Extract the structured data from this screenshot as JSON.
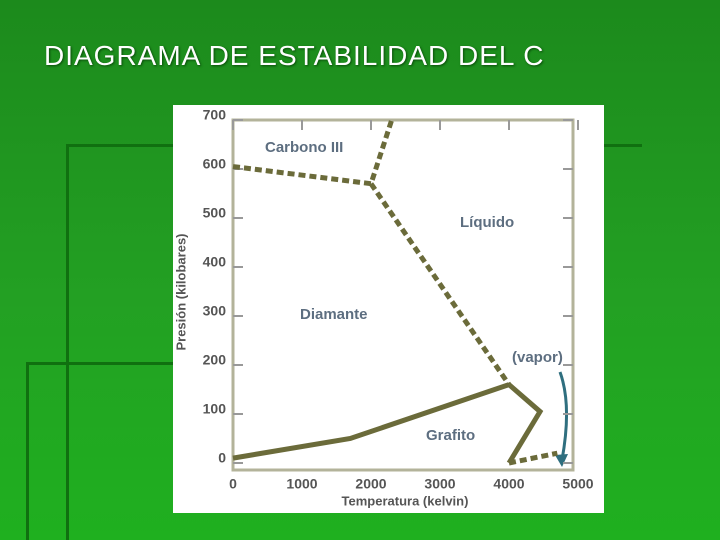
{
  "chart_data": {
    "type": "line",
    "title": "DIAGRAMA DE ESTABILIDAD DEL C",
    "x_label": "Temperatura (kelvin)",
    "y_label": "Presión (kilobares)",
    "xlim": [
      0,
      5000
    ],
    "ylim": [
      0,
      700
    ],
    "xticks": [
      0,
      1000,
      2000,
      3000,
      4000,
      5000
    ],
    "yticks": [
      0,
      100,
      200,
      300,
      400,
      500,
      600,
      700
    ],
    "series": [
      {
        "color": "#6b6b3a",
        "style": "dashed",
        "x": [
          0,
          2000,
          2300
        ],
        "values": [
          605,
          570,
          700
        ]
      },
      {
        "color": "#6b6b3a",
        "style": "dashed",
        "x": [
          2000,
          4000
        ],
        "values": [
          570,
          160
        ]
      },
      {
        "color": "#6b6b3a",
        "style": "solid",
        "x": [
          0,
          1700,
          4000
        ],
        "values": [
          10,
          50,
          160
        ]
      },
      {
        "color": "#6b6b3a",
        "style": "solid",
        "x": [
          4000,
          4450,
          4000
        ],
        "values": [
          160,
          105,
          0
        ]
      },
      {
        "color": "#6b6b3a",
        "style": "dashed",
        "x": [
          4000,
          4700
        ],
        "values": [
          0,
          20
        ]
      }
    ],
    "annotations": [
      "Carbono III",
      "Líquido",
      "Diamante",
      "(vapor)",
      "Grafito"
    ]
  }
}
